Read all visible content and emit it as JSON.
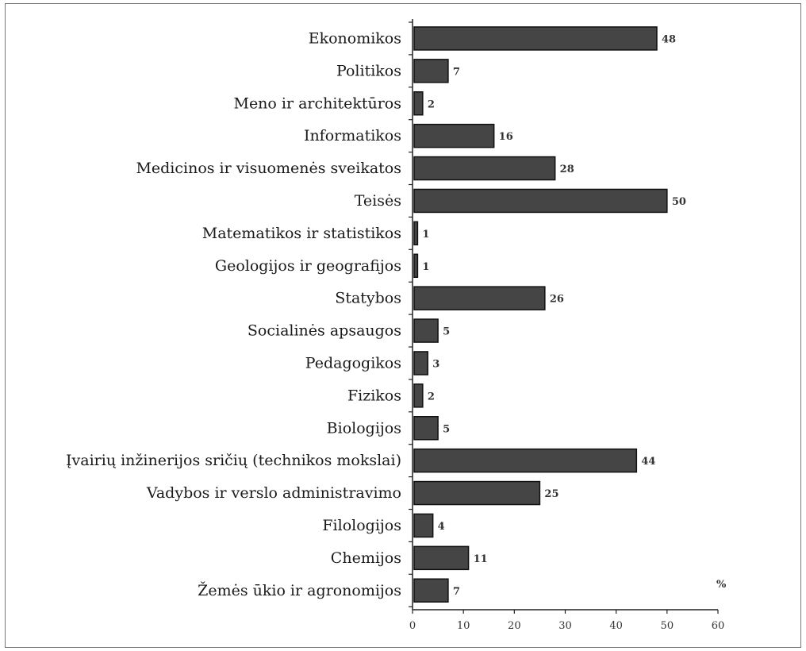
{
  "chart_data": {
    "type": "bar",
    "orientation": "horizontal",
    "categories": [
      "Ekonomikos",
      "Politikos",
      "Meno ir architektūros",
      "Informatikos",
      "Medicinos ir visuomenės sveikatos",
      "Teisės",
      "Matematikos ir statistikos",
      "Geologijos ir geografijos",
      "Statybos",
      "Socialinės apsaugos",
      "Pedagogikos",
      "Fizikos",
      "Biologijos",
      "Įvairių inžinerijos sričių (technikos mokslai)",
      "Vadybos ir verslo administravimo",
      "Filologijos",
      "Chemijos",
      "Žemės ūkio ir agronomijos"
    ],
    "values": [
      48,
      7,
      2,
      16,
      28,
      50,
      1,
      1,
      26,
      5,
      3,
      2,
      5,
      44,
      25,
      4,
      11,
      7
    ],
    "value_labels": [
      "48",
      "7",
      "2",
      "16",
      "28",
      "50",
      "1",
      "1",
      "26",
      "5",
      "3",
      "2",
      "5",
      "44",
      "25",
      "4",
      "11",
      "7"
    ],
    "xlim": [
      0,
      60
    ],
    "xticks": [
      "0",
      "10",
      "20",
      "30",
      "40",
      "50",
      "60"
    ],
    "unit_label": "%",
    "bar_color": "#454545",
    "bar_edge_color": "#111111",
    "grid": false
  }
}
